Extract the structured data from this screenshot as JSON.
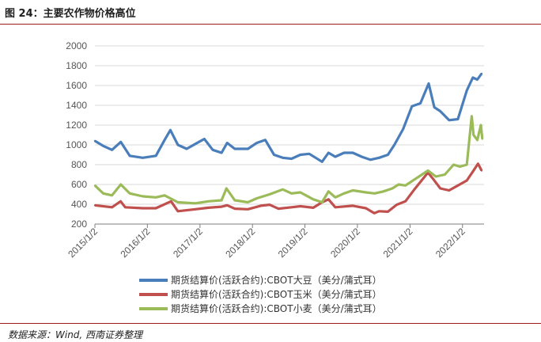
{
  "header": {
    "title": "图 24：主要农作物价格高位"
  },
  "footer": {
    "source": "数据来源：Wind, 西南证券整理"
  },
  "chart_data": {
    "type": "line",
    "title": "",
    "xlabel": "",
    "ylabel": "",
    "ylim": [
      200,
      2000
    ],
    "yticks": [
      "200",
      "400",
      "600",
      "800",
      "1000",
      "1200",
      "1400",
      "1600",
      "1800",
      "2000"
    ],
    "xticks": [
      "2015/1/2",
      "2016/1/2",
      "2017/1/2",
      "2018/1/2",
      "2019/1/2",
      "2020/1/2",
      "2021/1/2",
      "2022/1/2"
    ],
    "grid": "horizontal",
    "legend_position": "bottom",
    "series": [
      {
        "name": "期货结算价(活跃合约):CBOT大豆（美分/蒲式耳）",
        "color": "#4a7ebb",
        "points": [
          [
            "2015/01/02",
            1040
          ],
          [
            "2015/03/01",
            990
          ],
          [
            "2015/05/01",
            950
          ],
          [
            "2015/07/01",
            1030
          ],
          [
            "2015/09/01",
            890
          ],
          [
            "2015/12/01",
            870
          ],
          [
            "2016/03/01",
            890
          ],
          [
            "2016/05/01",
            1050
          ],
          [
            "2016/06/10",
            1150
          ],
          [
            "2016/08/01",
            1000
          ],
          [
            "2016/10/01",
            960
          ],
          [
            "2016/12/01",
            1010
          ],
          [
            "2017/02/01",
            1060
          ],
          [
            "2017/04/01",
            950
          ],
          [
            "2017/06/01",
            920
          ],
          [
            "2017/07/10",
            1020
          ],
          [
            "2017/09/01",
            960
          ],
          [
            "2017/12/01",
            960
          ],
          [
            "2018/02/01",
            1020
          ],
          [
            "2018/04/01",
            1050
          ],
          [
            "2018/06/01",
            900
          ],
          [
            "2018/08/01",
            870
          ],
          [
            "2018/10/01",
            860
          ],
          [
            "2018/12/01",
            900
          ],
          [
            "2019/02/01",
            910
          ],
          [
            "2019/05/01",
            830
          ],
          [
            "2019/06/15",
            920
          ],
          [
            "2019/08/01",
            880
          ],
          [
            "2019/10/01",
            920
          ],
          [
            "2019/12/01",
            920
          ],
          [
            "2020/02/01",
            880
          ],
          [
            "2020/04/01",
            850
          ],
          [
            "2020/06/01",
            870
          ],
          [
            "2020/08/01",
            900
          ],
          [
            "2020/09/15",
            1000
          ],
          [
            "2020/11/15",
            1160
          ],
          [
            "2021/01/15",
            1390
          ],
          [
            "2021/03/15",
            1420
          ],
          [
            "2021/05/12",
            1620
          ],
          [
            "2021/06/20",
            1380
          ],
          [
            "2021/08/01",
            1340
          ],
          [
            "2021/10/01",
            1250
          ],
          [
            "2021/12/01",
            1260
          ],
          [
            "2022/02/01",
            1550
          ],
          [
            "2022/03/15",
            1680
          ],
          [
            "2022/04/15",
            1660
          ],
          [
            "2022/05/15",
            1720
          ]
        ]
      },
      {
        "name": "期货结算价(活跃合约):CBOT玉米（美分/蒲式耳）",
        "color": "#c0504d",
        "points": [
          [
            "2015/01/02",
            390
          ],
          [
            "2015/05/01",
            370
          ],
          [
            "2015/06/30",
            430
          ],
          [
            "2015/08/01",
            370
          ],
          [
            "2015/12/01",
            360
          ],
          [
            "2016/03/01",
            360
          ],
          [
            "2016/06/15",
            430
          ],
          [
            "2016/08/01",
            330
          ],
          [
            "2016/12/01",
            350
          ],
          [
            "2017/03/01",
            365
          ],
          [
            "2017/06/01",
            375
          ],
          [
            "2017/07/10",
            390
          ],
          [
            "2017/09/01",
            355
          ],
          [
            "2017/12/01",
            350
          ],
          [
            "2018/03/01",
            385
          ],
          [
            "2018/05/01",
            395
          ],
          [
            "2018/07/01",
            355
          ],
          [
            "2018/10/01",
            370
          ],
          [
            "2018/12/01",
            380
          ],
          [
            "2019/03/01",
            365
          ],
          [
            "2019/05/01",
            420
          ],
          [
            "2019/06/15",
            450
          ],
          [
            "2019/08/01",
            370
          ],
          [
            "2019/12/01",
            385
          ],
          [
            "2020/03/01",
            360
          ],
          [
            "2020/04/28",
            310
          ],
          [
            "2020/06/01",
            330
          ],
          [
            "2020/08/01",
            325
          ],
          [
            "2020/10/01",
            395
          ],
          [
            "2020/12/01",
            430
          ],
          [
            "2021/02/01",
            550
          ],
          [
            "2021/05/07",
            720
          ],
          [
            "2021/06/15",
            650
          ],
          [
            "2021/08/01",
            560
          ],
          [
            "2021/10/01",
            540
          ],
          [
            "2021/12/01",
            590
          ],
          [
            "2022/02/01",
            640
          ],
          [
            "2022/03/15",
            730
          ],
          [
            "2022/04/20",
            810
          ],
          [
            "2022/05/15",
            740
          ]
        ]
      },
      {
        "name": "期货结算价(活跃合约):CBOT小麦（美分/蒲式耳）",
        "color": "#9bbb59",
        "points": [
          [
            "2015/01/02",
            590
          ],
          [
            "2015/03/01",
            510
          ],
          [
            "2015/05/01",
            490
          ],
          [
            "2015/07/01",
            600
          ],
          [
            "2015/09/01",
            510
          ],
          [
            "2015/12/01",
            480
          ],
          [
            "2016/03/01",
            470
          ],
          [
            "2016/05/01",
            490
          ],
          [
            "2016/08/01",
            420
          ],
          [
            "2016/12/01",
            410
          ],
          [
            "2017/03/01",
            430
          ],
          [
            "2017/06/01",
            440
          ],
          [
            "2017/07/05",
            560
          ],
          [
            "2017/09/01",
            440
          ],
          [
            "2017/12/01",
            420
          ],
          [
            "2018/02/01",
            460
          ],
          [
            "2018/05/01",
            500
          ],
          [
            "2018/08/01",
            550
          ],
          [
            "2018/10/01",
            510
          ],
          [
            "2018/12/01",
            520
          ],
          [
            "2019/03/01",
            450
          ],
          [
            "2019/05/01",
            420
          ],
          [
            "2019/06/15",
            530
          ],
          [
            "2019/08/01",
            470
          ],
          [
            "2019/10/01",
            510
          ],
          [
            "2019/12/01",
            540
          ],
          [
            "2020/03/01",
            520
          ],
          [
            "2020/05/01",
            510
          ],
          [
            "2020/07/01",
            530
          ],
          [
            "2020/09/01",
            560
          ],
          [
            "2020/10/15",
            600
          ],
          [
            "2020/12/01",
            590
          ],
          [
            "2021/02/01",
            650
          ],
          [
            "2021/05/07",
            740
          ],
          [
            "2021/07/01",
            680
          ],
          [
            "2021/09/01",
            700
          ],
          [
            "2021/11/01",
            800
          ],
          [
            "2021/12/15",
            780
          ],
          [
            "2022/02/01",
            800
          ],
          [
            "2022/03/07",
            1290
          ],
          [
            "2022/03/20",
            1100
          ],
          [
            "2022/04/15",
            1050
          ],
          [
            "2022/05/10",
            1200
          ],
          [
            "2022/05/20",
            1060
          ]
        ]
      }
    ]
  }
}
